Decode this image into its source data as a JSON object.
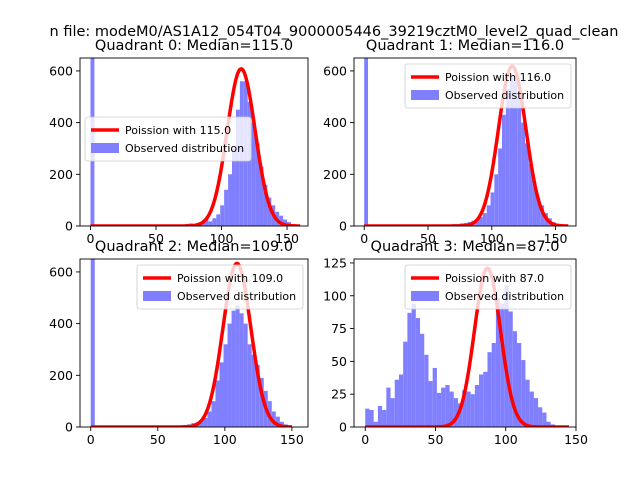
{
  "figure_title": "n file: modeM0/AS1A12_054T04_9000005446_39219cztM0_level2_quad_clean",
  "colors": {
    "poisson_line": "#ff0000",
    "histogram": "#7f7fff",
    "axis": "#000000"
  },
  "chart_data": [
    {
      "type": "histogram_with_line",
      "title": "Quadrant 0: Median=115.0",
      "xlim": [
        -8,
        166
      ],
      "ylim": [
        0,
        650
      ],
      "xticks": [
        0,
        50,
        100,
        150
      ],
      "yticks": [
        0,
        200,
        400,
        600
      ],
      "legend_placement": "center-left",
      "legend": [
        "Poission with 115.0",
        "Observed distribution"
      ],
      "bins": [
        [
          0,
          3,
          650
        ],
        [
          3,
          6,
          2
        ],
        [
          66,
          69,
          5
        ],
        [
          69,
          72,
          6
        ],
        [
          72,
          75,
          8
        ],
        [
          75,
          78,
          10
        ],
        [
          78,
          81,
          8
        ],
        [
          81,
          84,
          12
        ],
        [
          84,
          87,
          15
        ],
        [
          87,
          90,
          25
        ],
        [
          90,
          93,
          18
        ],
        [
          93,
          96,
          30
        ],
        [
          96,
          99,
          45
        ],
        [
          99,
          102,
          80
        ],
        [
          102,
          105,
          140
        ],
        [
          105,
          108,
          200
        ],
        [
          108,
          111,
          300
        ],
        [
          111,
          114,
          450
        ],
        [
          114,
          117,
          560
        ],
        [
          117,
          120,
          560
        ],
        [
          120,
          123,
          480
        ],
        [
          123,
          126,
          400
        ],
        [
          126,
          129,
          320
        ],
        [
          129,
          132,
          230
        ],
        [
          132,
          135,
          160
        ],
        [
          135,
          138,
          110
        ],
        [
          138,
          141,
          80
        ],
        [
          141,
          144,
          55
        ],
        [
          144,
          147,
          40
        ],
        [
          147,
          150,
          25
        ],
        [
          150,
          153,
          15
        ],
        [
          153,
          156,
          8
        ]
      ],
      "poisson": {
        "mean": 115.0,
        "peak": 608,
        "sigma": 10.7,
        "x_range": [
          0,
          160
        ]
      }
    },
    {
      "type": "histogram_with_line",
      "title": "Quadrant 1: Median=116.0",
      "xlim": [
        -8,
        166
      ],
      "ylim": [
        0,
        650
      ],
      "xticks": [
        0,
        50,
        100,
        150
      ],
      "yticks": [
        0,
        200,
        400,
        600
      ],
      "legend_placement": "upper-right",
      "legend": [
        "Poission with 116.0",
        "Observed distribution"
      ],
      "bins": [
        [
          0,
          3,
          650
        ],
        [
          3,
          6,
          2
        ],
        [
          63,
          66,
          5
        ],
        [
          66,
          69,
          6
        ],
        [
          69,
          72,
          8
        ],
        [
          72,
          75,
          8
        ],
        [
          75,
          78,
          10
        ],
        [
          78,
          81,
          12
        ],
        [
          81,
          84,
          15
        ],
        [
          84,
          87,
          20
        ],
        [
          87,
          90,
          25
        ],
        [
          90,
          93,
          35
        ],
        [
          93,
          96,
          50
        ],
        [
          96,
          99,
          80
        ],
        [
          99,
          102,
          130
        ],
        [
          102,
          105,
          200
        ],
        [
          105,
          108,
          300
        ],
        [
          108,
          111,
          430
        ],
        [
          111,
          114,
          530
        ],
        [
          114,
          117,
          580
        ],
        [
          117,
          120,
          560
        ],
        [
          120,
          123,
          500
        ],
        [
          123,
          126,
          400
        ],
        [
          126,
          129,
          320
        ],
        [
          129,
          132,
          240
        ],
        [
          132,
          135,
          170
        ],
        [
          135,
          138,
          110
        ],
        [
          138,
          141,
          80
        ],
        [
          141,
          144,
          50
        ],
        [
          144,
          147,
          30
        ],
        [
          147,
          150,
          15
        ],
        [
          150,
          153,
          8
        ]
      ],
      "poisson": {
        "mean": 116.0,
        "peak": 618,
        "sigma": 10.8,
        "x_range": [
          0,
          160
        ]
      }
    },
    {
      "type": "histogram_with_line",
      "title": "Quadrant 2: Median=109.0",
      "xlim": [
        -8,
        162
      ],
      "ylim": [
        0,
        650
      ],
      "xticks": [
        0,
        50,
        100,
        150
      ],
      "yticks": [
        0,
        200,
        400,
        600
      ],
      "legend_placement": "upper-right",
      "legend": [
        "Poission with 109.0",
        "Observed distribution"
      ],
      "bins": [
        [
          0,
          3,
          650
        ],
        [
          3,
          6,
          2
        ],
        [
          60,
          63,
          4
        ],
        [
          63,
          66,
          5
        ],
        [
          66,
          69,
          6
        ],
        [
          69,
          72,
          8
        ],
        [
          72,
          75,
          10
        ],
        [
          75,
          78,
          15
        ],
        [
          78,
          81,
          18
        ],
        [
          81,
          84,
          25
        ],
        [
          84,
          87,
          35
        ],
        [
          87,
          90,
          60
        ],
        [
          90,
          93,
          100
        ],
        [
          93,
          96,
          180
        ],
        [
          96,
          99,
          250
        ],
        [
          99,
          102,
          320
        ],
        [
          102,
          105,
          400
        ],
        [
          105,
          108,
          450
        ],
        [
          108,
          111,
          470
        ],
        [
          111,
          114,
          440
        ],
        [
          114,
          117,
          400
        ],
        [
          117,
          120,
          320
        ],
        [
          120,
          123,
          280
        ],
        [
          123,
          126,
          240
        ],
        [
          126,
          129,
          190
        ],
        [
          129,
          132,
          140
        ],
        [
          132,
          135,
          100
        ],
        [
          135,
          138,
          60
        ],
        [
          138,
          141,
          40
        ],
        [
          141,
          144,
          20
        ],
        [
          144,
          147,
          10
        ],
        [
          147,
          150,
          5
        ]
      ],
      "poisson": {
        "mean": 109.0,
        "peak": 633,
        "sigma": 10.4,
        "x_range": [
          0,
          150
        ]
      }
    },
    {
      "type": "histogram_with_line",
      "title": "Quadrant 3: Median=87.0",
      "xlim": [
        -8,
        150
      ],
      "ylim": [
        0,
        128
      ],
      "xticks": [
        0,
        50,
        100,
        150
      ],
      "yticks": [
        0,
        25,
        50,
        75,
        100,
        125
      ],
      "legend_placement": "upper-right",
      "legend": [
        "Poission with 87.0",
        "Observed distribution"
      ],
      "bins": [
        [
          0,
          3,
          14
        ],
        [
          3,
          6,
          13
        ],
        [
          6,
          9,
          4
        ],
        [
          9,
          12,
          16
        ],
        [
          12,
          15,
          13
        ],
        [
          15,
          18,
          30
        ],
        [
          18,
          21,
          22
        ],
        [
          21,
          24,
          36
        ],
        [
          24,
          27,
          40
        ],
        [
          27,
          30,
          65
        ],
        [
          30,
          33,
          87
        ],
        [
          33,
          36,
          94
        ],
        [
          36,
          39,
          83
        ],
        [
          39,
          42,
          71
        ],
        [
          42,
          45,
          55
        ],
        [
          45,
          48,
          35
        ],
        [
          48,
          51,
          45
        ],
        [
          51,
          54,
          26
        ],
        [
          54,
          57,
          30
        ],
        [
          57,
          60,
          32
        ],
        [
          60,
          63,
          27
        ],
        [
          63,
          66,
          22
        ],
        [
          66,
          69,
          18
        ],
        [
          69,
          72,
          28
        ],
        [
          72,
          75,
          27
        ],
        [
          75,
          78,
          25
        ],
        [
          78,
          81,
          32
        ],
        [
          81,
          84,
          40
        ],
        [
          84,
          87,
          42
        ],
        [
          87,
          90,
          57
        ],
        [
          90,
          93,
          64
        ],
        [
          93,
          96,
          98
        ],
        [
          96,
          99,
          94
        ],
        [
          99,
          102,
          108
        ],
        [
          102,
          105,
          88
        ],
        [
          105,
          108,
          73
        ],
        [
          108,
          111,
          64
        ],
        [
          111,
          114,
          51
        ],
        [
          114,
          117,
          36
        ],
        [
          117,
          120,
          27
        ],
        [
          120,
          123,
          22
        ],
        [
          123,
          126,
          15
        ],
        [
          126,
          129,
          11
        ],
        [
          129,
          132,
          4
        ],
        [
          132,
          135,
          2
        ],
        [
          135,
          138,
          1
        ]
      ],
      "poisson": {
        "mean": 87.0,
        "peak": 121,
        "sigma": 9.3,
        "x_range": [
          0,
          145
        ]
      }
    }
  ]
}
